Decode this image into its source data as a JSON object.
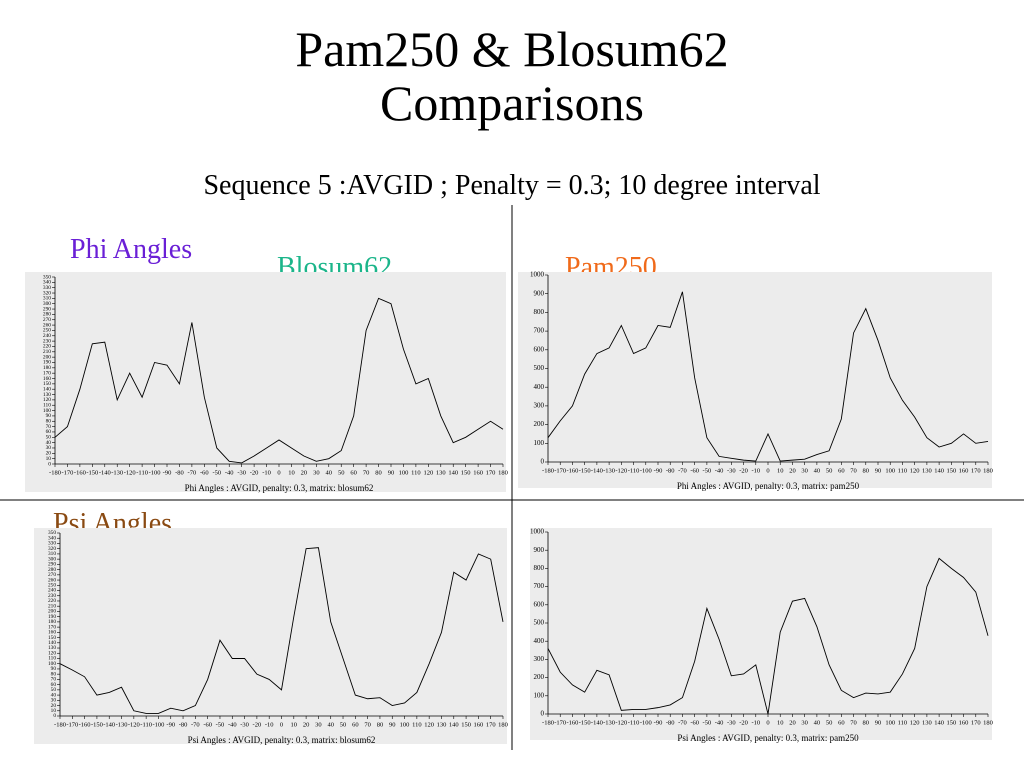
{
  "title": "Pam250 & Blosum62 Comparisons",
  "subtitle": "Sequence 5 :AVGID ; Penalty = 0.3; 10 degree interval",
  "row_labels": [
    "Phi Angles",
    "Psi Angles"
  ],
  "column_labels": [
    "Blosum62",
    "Pam250"
  ],
  "chart_data": [
    {
      "type": "line",
      "xlabel": "Phi Angles : AVGID, penalty: 0.3, matrix: blosum62",
      "color": "#000000",
      "x": [
        -180,
        -170,
        -160,
        -150,
        -140,
        -130,
        -120,
        -110,
        -100,
        -90,
        -80,
        -70,
        -60,
        -50,
        -40,
        -30,
        -20,
        -10,
        0,
        10,
        20,
        30,
        40,
        50,
        60,
        70,
        80,
        90,
        100,
        110,
        120,
        130,
        140,
        150,
        160,
        170,
        180
      ],
      "values": [
        50,
        70,
        140,
        225,
        228,
        120,
        170,
        125,
        190,
        185,
        150,
        265,
        125,
        30,
        5,
        2,
        15,
        30,
        45,
        30,
        15,
        5,
        10,
        25,
        90,
        250,
        310,
        300,
        215,
        150,
        160,
        90,
        40,
        50,
        65,
        80,
        65
      ],
      "xlim": [
        -180,
        180
      ],
      "xticks": [
        -180,
        -170,
        -160,
        -150,
        -140,
        -130,
        -120,
        -110,
        -100,
        -90,
        -80,
        -70,
        -60,
        -50,
        -40,
        -30,
        -20,
        -10,
        0,
        10,
        20,
        30,
        40,
        50,
        60,
        70,
        80,
        90,
        100,
        110,
        120,
        130,
        140,
        150,
        160,
        170,
        180
      ],
      "ylim": [
        0,
        350
      ],
      "yticks": [
        0,
        10,
        20,
        30,
        40,
        50,
        60,
        70,
        80,
        90,
        100,
        110,
        120,
        130,
        140,
        150,
        160,
        170,
        180,
        190,
        200,
        210,
        220,
        230,
        240,
        250,
        260,
        270,
        280,
        290,
        300,
        310,
        320,
        330,
        340,
        350
      ]
    },
    {
      "type": "line",
      "xlabel": "Phi Angles : AVGID, penalty: 0.3, matrix: pam250",
      "color": "#000000",
      "x": [
        -180,
        -170,
        -160,
        -150,
        -140,
        -130,
        -120,
        -110,
        -100,
        -90,
        -80,
        -70,
        -60,
        -50,
        -40,
        -30,
        -20,
        -10,
        0,
        10,
        20,
        30,
        40,
        50,
        60,
        70,
        80,
        90,
        100,
        110,
        120,
        130,
        140,
        150,
        160,
        170,
        180
      ],
      "values": [
        130,
        220,
        300,
        470,
        580,
        610,
        730,
        580,
        610,
        730,
        720,
        910,
        450,
        130,
        30,
        20,
        10,
        5,
        150,
        5,
        10,
        15,
        40,
        60,
        230,
        690,
        820,
        650,
        450,
        330,
        240,
        130,
        80,
        100,
        150,
        100,
        110
      ],
      "xlim": [
        -180,
        180
      ],
      "xticks": [
        -180,
        -170,
        -160,
        -150,
        -140,
        -130,
        -120,
        -110,
        -100,
        -90,
        -80,
        -70,
        -60,
        -50,
        -40,
        -30,
        -20,
        -10,
        0,
        10,
        20,
        30,
        40,
        50,
        60,
        70,
        80,
        90,
        100,
        110,
        120,
        130,
        140,
        150,
        160,
        170,
        180
      ],
      "ylim": [
        0,
        1000
      ],
      "yticks": [
        0,
        100,
        200,
        300,
        400,
        500,
        600,
        700,
        800,
        900,
        1000
      ]
    },
    {
      "type": "line",
      "xlabel": "Psi Angles : AVGID, penalty: 0.3, matrix: blosum62",
      "color": "#000000",
      "x": [
        -180,
        -170,
        -160,
        -150,
        -140,
        -130,
        -120,
        -110,
        -100,
        -90,
        -80,
        -70,
        -60,
        -50,
        -40,
        -30,
        -20,
        -10,
        0,
        10,
        20,
        30,
        40,
        50,
        60,
        70,
        80,
        90,
        100,
        110,
        120,
        130,
        140,
        150,
        160,
        170,
        180
      ],
      "values": [
        100,
        88,
        75,
        40,
        45,
        55,
        10,
        5,
        5,
        15,
        10,
        20,
        70,
        145,
        110,
        110,
        80,
        70,
        50,
        190,
        320,
        322,
        180,
        110,
        40,
        33,
        35,
        20,
        25,
        45,
        100,
        160,
        275,
        260,
        310,
        300,
        180
      ],
      "xlim": [
        -180,
        180
      ],
      "xticks": [
        -180,
        -170,
        -160,
        -150,
        -140,
        -130,
        -120,
        -110,
        -100,
        -90,
        -80,
        -70,
        -60,
        -50,
        -40,
        -30,
        -20,
        -10,
        0,
        10,
        20,
        30,
        40,
        50,
        60,
        70,
        80,
        90,
        100,
        110,
        120,
        130,
        140,
        150,
        160,
        170,
        180
      ],
      "ylim": [
        0,
        350
      ],
      "yticks": [
        0,
        10,
        20,
        30,
        40,
        50,
        60,
        70,
        80,
        90,
        100,
        110,
        120,
        130,
        140,
        150,
        160,
        170,
        180,
        190,
        200,
        210,
        220,
        230,
        240,
        250,
        260,
        270,
        280,
        290,
        300,
        310,
        320,
        330,
        340,
        350
      ]
    },
    {
      "type": "line",
      "xlabel": "Psi Angles : AVGID, penalty: 0.3, matrix: pam250",
      "color": "#000000",
      "x": [
        -180,
        -170,
        -160,
        -150,
        -140,
        -130,
        -120,
        -110,
        -100,
        -90,
        -80,
        -70,
        -60,
        -50,
        -40,
        -30,
        -20,
        -10,
        0,
        10,
        20,
        30,
        40,
        50,
        60,
        70,
        80,
        90,
        100,
        110,
        120,
        130,
        140,
        150,
        160,
        170,
        180
      ],
      "values": [
        360,
        230,
        160,
        120,
        240,
        215,
        20,
        25,
        25,
        35,
        50,
        90,
        290,
        580,
        410,
        210,
        220,
        270,
        0,
        450,
        620,
        635,
        480,
        270,
        130,
        90,
        115,
        110,
        120,
        220,
        360,
        700,
        855,
        800,
        750,
        670,
        430
      ],
      "xlim": [
        -180,
        180
      ],
      "xticks": [
        -180,
        -170,
        -160,
        -150,
        -140,
        -130,
        -120,
        -110,
        -100,
        -90,
        -80,
        -70,
        -60,
        -50,
        -40,
        -30,
        -20,
        -10,
        0,
        10,
        20,
        30,
        40,
        50,
        60,
        70,
        80,
        90,
        100,
        110,
        120,
        130,
        140,
        150,
        160,
        170,
        180
      ],
      "ylim": [
        0,
        1000
      ],
      "yticks": [
        0,
        100,
        200,
        300,
        400,
        500,
        600,
        700,
        800,
        900,
        1000
      ]
    }
  ]
}
